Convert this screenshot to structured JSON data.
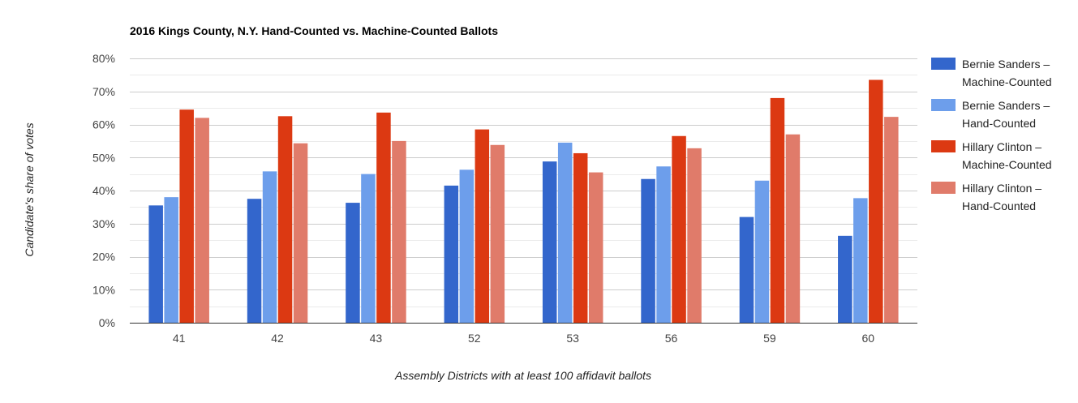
{
  "chart_data": {
    "type": "bar",
    "title": "2016 Kings County, N.Y. Hand-Counted vs. Machine-Counted Ballots",
    "xlabel": "Assembly Districts with at least 100 affidavit ballots",
    "ylabel": "Candidate's share of votes",
    "ylim": [
      0,
      80
    ],
    "y_ticks": [
      "0%",
      "10%",
      "20%",
      "30%",
      "40%",
      "50%",
      "60%",
      "70%",
      "80%"
    ],
    "grid": true,
    "legend_position": "right",
    "categories": [
      "41",
      "42",
      "43",
      "52",
      "53",
      "56",
      "59",
      "60"
    ],
    "series": [
      {
        "name": "Bernie Sanders – Machine-Counted",
        "name_lines": [
          "Bernie Sanders –",
          "Machine-Counted"
        ],
        "color": "#3366cc",
        "values": [
          35.5,
          37.5,
          36.3,
          41.5,
          48.8,
          43.5,
          32.0,
          26.3
        ]
      },
      {
        "name": "Bernie Sanders – Hand-Counted",
        "name_lines": [
          "Bernie Sanders –",
          "Hand-Counted"
        ],
        "color": "#6d9eeb",
        "values": [
          38.0,
          45.8,
          45.0,
          46.3,
          54.5,
          47.3,
          43.0,
          37.7
        ]
      },
      {
        "name": "Hillary Clinton – Machine-Counted",
        "name_lines": [
          "Hillary Clinton –",
          "Machine-Counted"
        ],
        "color": "#dc3912",
        "values": [
          64.5,
          62.5,
          63.6,
          58.5,
          51.3,
          56.5,
          68.0,
          73.5
        ]
      },
      {
        "name": "Hillary Clinton – Hand-Counted",
        "name_lines": [
          "Hillary Clinton –",
          "Hand-Counted"
        ],
        "color": "#e07b6a",
        "values": [
          62.0,
          54.3,
          55.0,
          53.8,
          45.5,
          52.8,
          57.0,
          62.3
        ]
      }
    ]
  }
}
